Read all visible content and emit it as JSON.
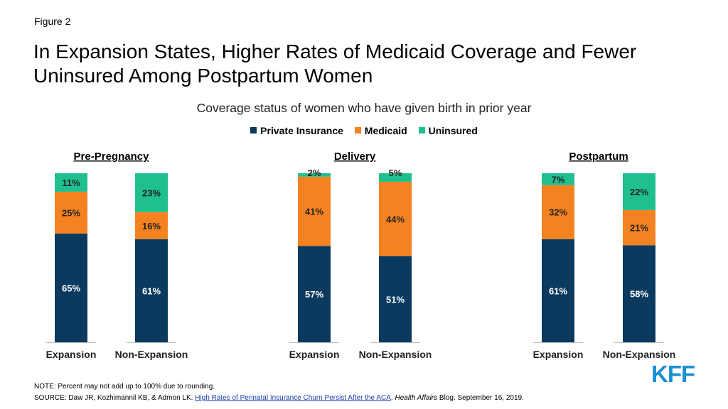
{
  "figure_label": "Figure 2",
  "title": "In Expansion States, Higher Rates of Medicaid Coverage and Fewer Uninsured Among Postpartum Women",
  "note": "NOTE: Percent may not add up to 100% due to rounding.",
  "source": {
    "prefix": "SOURCE: Daw JR, Kozhimannil KB, & Admon LK. ",
    "link_text": "High Rates of Perinatal Insurance Churn Persist After the ACA",
    "middle": ". ",
    "publication": "Health Affairs",
    "suffix": " Blog. September 16, 2019."
  },
  "logo": {
    "text": "KFF",
    "color": "#1a8fd6"
  },
  "colors": {
    "Private Insurance": "#0b3a5e",
    "Medicaid": "#f58220",
    "Uninsured": "#1fbf8f"
  },
  "chart_data": {
    "type": "bar",
    "stacked": true,
    "title": "Coverage status of women who have given birth in prior year",
    "legend": [
      "Private Insurance",
      "Medicaid",
      "Uninsured"
    ],
    "legend_position": "top",
    "ylim": [
      0,
      100
    ],
    "grid": false,
    "groups": [
      {
        "name": "Pre-Pregnancy",
        "bars": [
          {
            "category": "Expansion",
            "values": {
              "Private Insurance": 65,
              "Medicaid": 25,
              "Uninsured": 11
            }
          },
          {
            "category": "Non-Expansion",
            "values": {
              "Private Insurance": 61,
              "Medicaid": 16,
              "Uninsured": 23
            }
          }
        ]
      },
      {
        "name": "Delivery",
        "bars": [
          {
            "category": "Expansion",
            "values": {
              "Private Insurance": 57,
              "Medicaid": 41,
              "Uninsured": 2
            }
          },
          {
            "category": "Non-Expansion",
            "values": {
              "Private Insurance": 51,
              "Medicaid": 44,
              "Uninsured": 5
            }
          }
        ]
      },
      {
        "name": "Postpartum",
        "bars": [
          {
            "category": "Expansion",
            "values": {
              "Private Insurance": 61,
              "Medicaid": 32,
              "Uninsured": 7
            }
          },
          {
            "category": "Non-Expansion",
            "values": {
              "Private Insurance": 58,
              "Medicaid": 21,
              "Uninsured": 22
            }
          }
        ]
      }
    ]
  }
}
